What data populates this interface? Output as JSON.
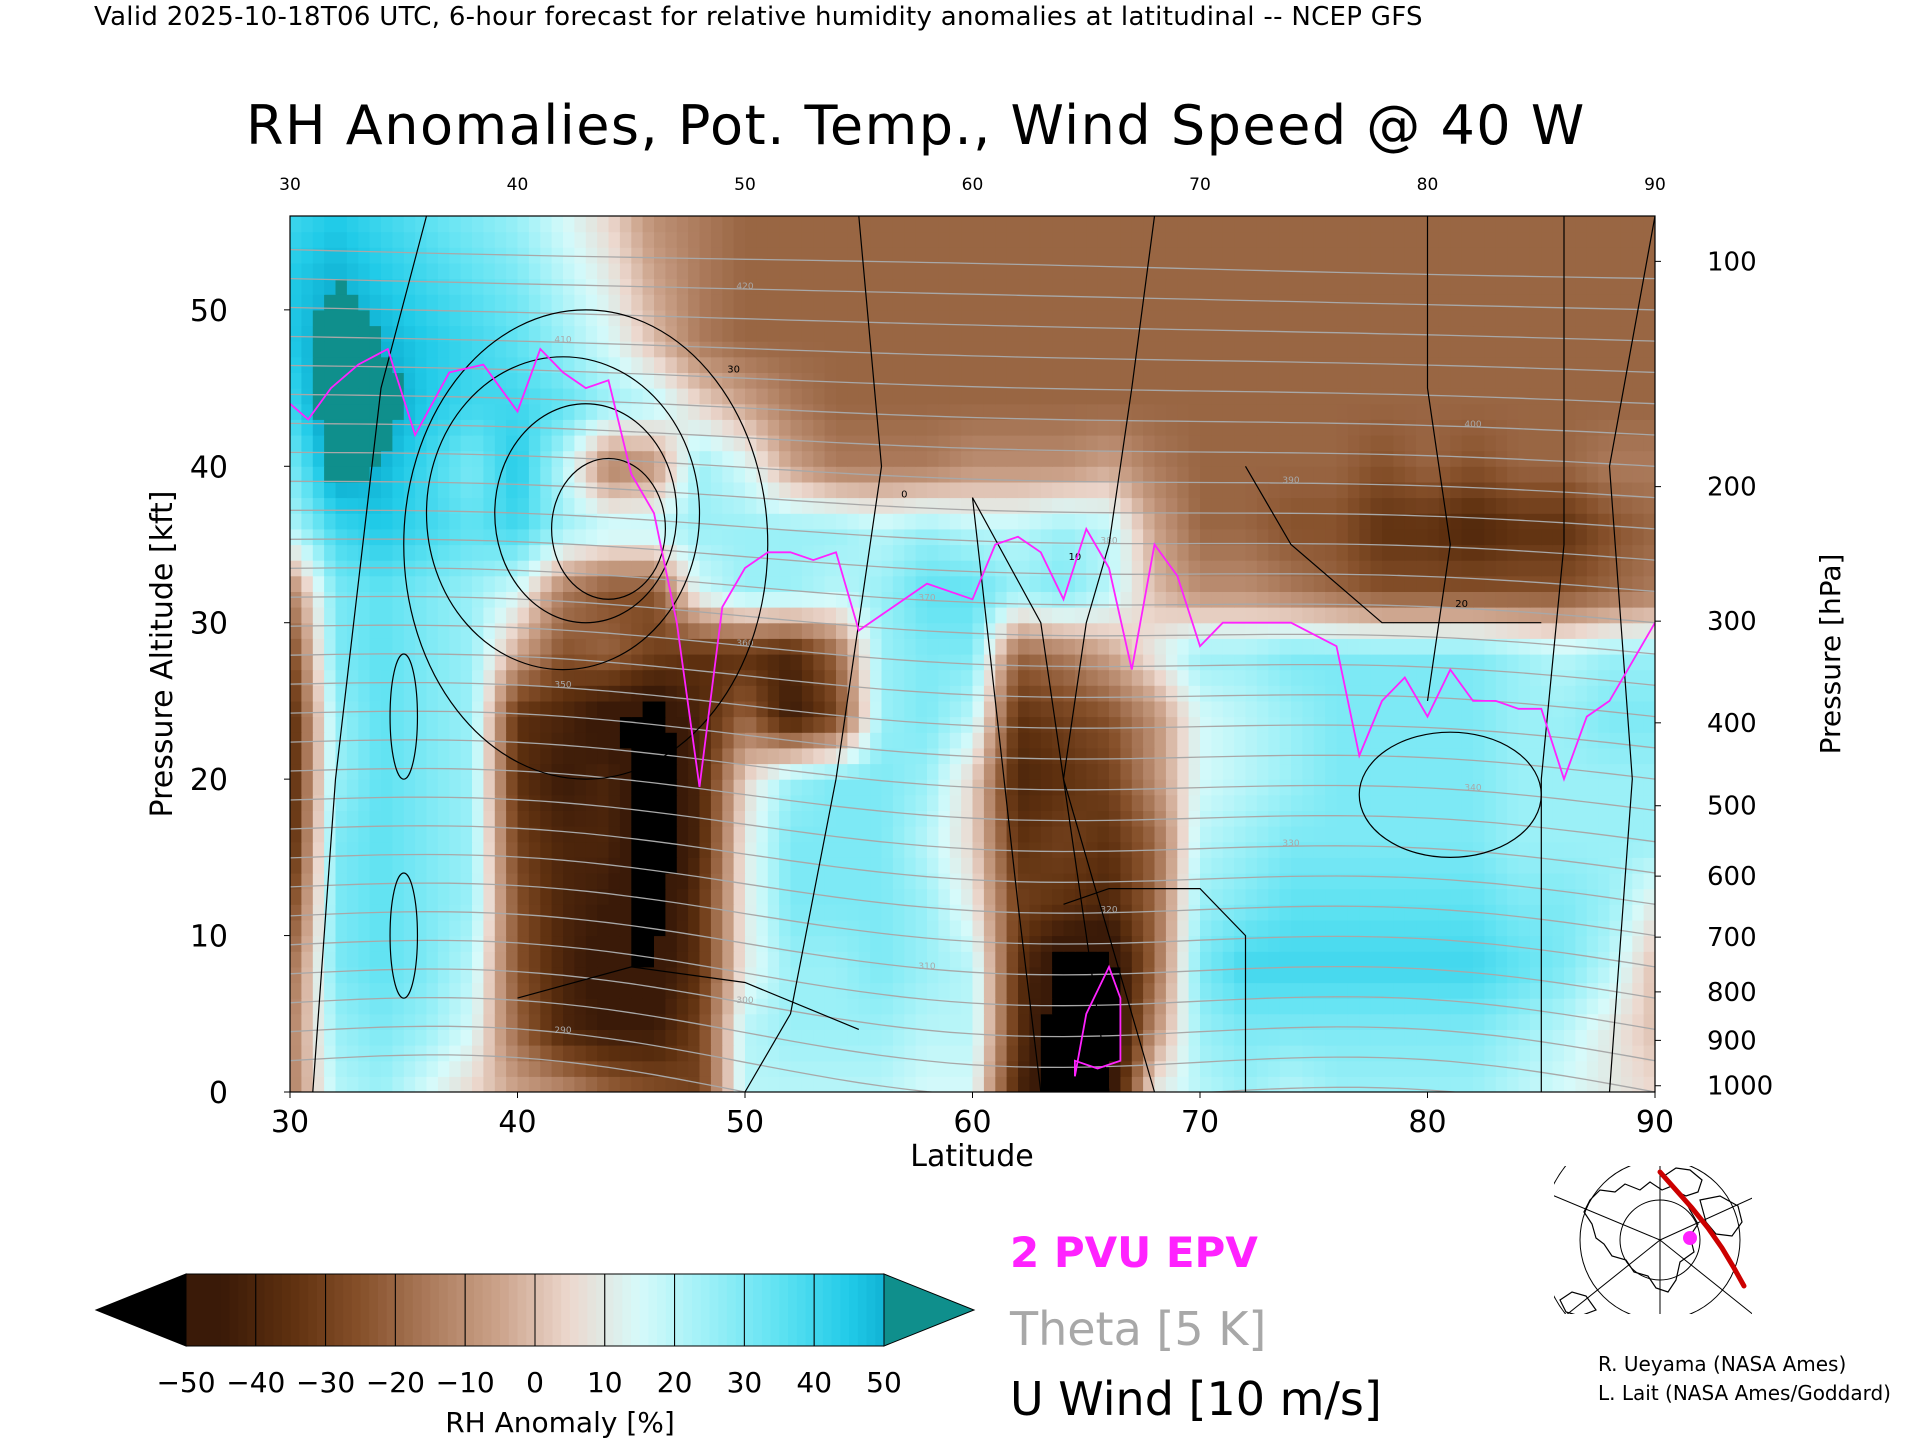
{
  "header": {
    "line": "Valid 2025-10-18T06 UTC, 6-hour forecast for relative humidity anomalies at latitudinal -- NCEP GFS",
    "title": "RH Anomalies, Pot. Temp., Wind Speed @ 40 W"
  },
  "credits": {
    "line1": "R. Ueyama (NASA Ames)",
    "line2": "L. Lait (NASA Ames/Goddard)"
  },
  "legend": {
    "epv_label": "2 PVU EPV",
    "theta_label": "Theta [5 K]",
    "u_label": "U Wind [10 m/s]"
  },
  "colors": {
    "epv": "#ff22ff",
    "theta": "#a8a8a8",
    "u_wind": "#000000",
    "map_track": "#cc0000",
    "map_point": "#ff22ff"
  },
  "chart_data": {
    "type": "heatmap",
    "title": "RH Anomalies, Pot. Temp., Wind Speed @ 40 W",
    "xlabel": "Latitude",
    "ylabel": "Pressure Altitude [kft]",
    "y2label": "Pressure [hPa]",
    "xlim": [
      30,
      90
    ],
    "ylim": [
      0,
      56
    ],
    "x_ticks": [
      30,
      40,
      50,
      60,
      70,
      80,
      90
    ],
    "y_ticks": [
      0,
      10,
      20,
      30,
      40,
      50
    ],
    "pressure_ticks": [
      {
        "hpa": 100,
        "kft": 53.1
      },
      {
        "hpa": 200,
        "kft": 38.7
      },
      {
        "hpa": 300,
        "kft": 30.1
      },
      {
        "hpa": 400,
        "kft": 23.6
      },
      {
        "hpa": 500,
        "kft": 18.3
      },
      {
        "hpa": 600,
        "kft": 13.8
      },
      {
        "hpa": 700,
        "kft": 9.9
      },
      {
        "hpa": 800,
        "kft": 6.4
      },
      {
        "hpa": 900,
        "kft": 3.3
      },
      {
        "hpa": 1000,
        "kft": 0.4
      }
    ],
    "colorbar": {
      "label": "RH Anomaly [%]",
      "ticks": [
        -50,
        -40,
        -30,
        -20,
        -10,
        0,
        10,
        20,
        30,
        40,
        50
      ],
      "tick_labels": [
        "−50",
        "−40",
        "−30",
        "−20",
        "−10",
        "0",
        "10",
        "20",
        "30",
        "40",
        "50"
      ],
      "colors": [
        "#3a1a08",
        "#5e300f",
        "#86502a",
        "#ac7b5c",
        "#cca38b",
        "#ecd8ce",
        "#d6fafa",
        "#9bf0f7",
        "#5fe2f2",
        "#21cbe8",
        "#009bc0"
      ],
      "under_color": "#000000",
      "over_color": "#0f8f8c"
    },
    "rh_field": {
      "x": [
        30,
        32,
        34,
        36,
        38,
        40,
        42,
        44,
        46,
        48,
        50,
        52,
        54,
        56,
        58,
        60,
        62,
        64,
        66,
        68,
        70,
        72,
        74,
        76,
        78,
        80,
        82,
        84,
        86,
        88,
        90
      ],
      "y": [
        0,
        4,
        8,
        12,
        16,
        20,
        24,
        28,
        32,
        36,
        40,
        44,
        48,
        52,
        56
      ],
      "z": [
        [
          -15,
          20,
          25,
          15,
          5,
          -5,
          -10,
          -20,
          -25,
          -30,
          20,
          20,
          20,
          20,
          15,
          15,
          -40,
          -60,
          -55,
          10,
          20,
          25,
          20,
          25,
          25,
          25,
          25,
          20,
          15,
          10,
          5
        ],
        [
          -15,
          25,
          30,
          25,
          15,
          -20,
          -40,
          -45,
          -45,
          -30,
          20,
          25,
          25,
          25,
          20,
          20,
          -35,
          -60,
          -60,
          -10,
          25,
          30,
          30,
          30,
          30,
          30,
          30,
          25,
          20,
          10,
          0
        ],
        [
          -20,
          30,
          35,
          30,
          20,
          -25,
          -40,
          -50,
          -50,
          -35,
          10,
          25,
          25,
          30,
          25,
          20,
          -35,
          -55,
          -55,
          -20,
          30,
          40,
          40,
          40,
          40,
          40,
          40,
          35,
          30,
          20,
          0
        ],
        [
          -30,
          30,
          35,
          30,
          25,
          -25,
          -40,
          -45,
          -55,
          -35,
          10,
          30,
          30,
          30,
          25,
          10,
          -30,
          -35,
          -40,
          -20,
          25,
          30,
          35,
          35,
          35,
          35,
          35,
          30,
          30,
          25,
          10
        ],
        [
          -40,
          30,
          35,
          30,
          25,
          -30,
          -40,
          -40,
          -60,
          -40,
          10,
          30,
          30,
          30,
          20,
          5,
          -35,
          -30,
          -35,
          -20,
          20,
          25,
          30,
          30,
          30,
          30,
          30,
          25,
          25,
          25,
          25
        ],
        [
          -40,
          25,
          35,
          30,
          25,
          -35,
          -45,
          -40,
          -60,
          -40,
          5,
          25,
          30,
          30,
          25,
          5,
          -40,
          -35,
          -30,
          -10,
          15,
          20,
          25,
          30,
          30,
          30,
          30,
          25,
          25,
          25,
          25
        ],
        [
          -40,
          25,
          35,
          30,
          25,
          -35,
          -40,
          -50,
          -55,
          -40,
          -20,
          -45,
          -30,
          25,
          30,
          20,
          -35,
          -30,
          -25,
          -10,
          15,
          20,
          25,
          30,
          30,
          30,
          30,
          25,
          25,
          30,
          30
        ],
        [
          -30,
          30,
          35,
          30,
          25,
          -5,
          -25,
          -20,
          -30,
          -35,
          -35,
          -40,
          -20,
          25,
          30,
          30,
          -20,
          -15,
          -5,
          10,
          25,
          25,
          30,
          30,
          30,
          30,
          30,
          25,
          20,
          25,
          25
        ],
        [
          -15,
          30,
          35,
          30,
          25,
          15,
          -15,
          -25,
          -25,
          15,
          25,
          25,
          20,
          25,
          35,
          35,
          25,
          30,
          20,
          0,
          -10,
          -10,
          -15,
          -20,
          -25,
          -25,
          -25,
          -25,
          -25,
          -20,
          -15
        ],
        [
          20,
          40,
          45,
          40,
          35,
          40,
          25,
          20,
          20,
          25,
          25,
          25,
          25,
          20,
          25,
          20,
          20,
          25,
          20,
          -5,
          -20,
          -20,
          -25,
          -25,
          -35,
          -35,
          -40,
          -35,
          -35,
          -25,
          -20
        ],
        [
          30,
          55,
          50,
          40,
          30,
          45,
          20,
          -15,
          -10,
          25,
          15,
          -5,
          -15,
          -15,
          -15,
          -10,
          -10,
          -10,
          -5,
          -15,
          -20,
          -20,
          -20,
          -20,
          -25,
          -20,
          -25,
          -20,
          -20,
          -15,
          -15
        ],
        [
          40,
          60,
          55,
          45,
          40,
          40,
          35,
          25,
          20,
          5,
          -5,
          -15,
          -20,
          -20,
          -20,
          -20,
          -20,
          -20,
          -20,
          -20,
          -20,
          -20,
          -20,
          -20,
          -20,
          -20,
          -20,
          -20,
          -20,
          -20,
          -20
        ],
        [
          45,
          55,
          50,
          45,
          40,
          35,
          25,
          15,
          0,
          -15,
          -20,
          -20,
          -20,
          -20,
          -20,
          -20,
          -20,
          -20,
          -20,
          -20,
          -20,
          -20,
          -20,
          -20,
          -20,
          -20,
          -20,
          -20,
          -20,
          -20,
          -20
        ],
        [
          45,
          50,
          45,
          40,
          35,
          30,
          20,
          10,
          -5,
          -15,
          -20,
          -20,
          -20,
          -20,
          -20,
          -20,
          -20,
          -20,
          -20,
          -20,
          -20,
          -20,
          -20,
          -20,
          -20,
          -20,
          -20,
          -20,
          -20,
          -20,
          -20
        ],
        [
          40,
          45,
          40,
          35,
          30,
          25,
          15,
          5,
          -10,
          -15,
          -20,
          -20,
          -20,
          -20,
          -20,
          -20,
          -20,
          -20,
          -20,
          -20,
          -20,
          -20,
          -20,
          -20,
          -20,
          -20,
          -20,
          -20,
          -20,
          -20,
          -20
        ]
      ]
    },
    "epv_2pvu": {
      "name": "2 PVU EPV",
      "x": [
        30,
        30.8,
        31.8,
        33,
        34.3,
        35.5,
        37,
        38.5,
        40,
        41,
        42,
        43,
        44,
        45,
        46,
        47,
        48,
        49,
        50,
        51,
        52,
        53,
        54,
        55,
        56,
        58,
        60,
        61,
        62,
        63,
        64,
        65,
        66,
        67,
        68,
        69,
        70,
        71,
        72,
        74,
        76,
        77,
        78,
        79,
        80,
        81,
        82,
        83,
        84,
        85,
        86,
        87,
        88,
        89,
        90
      ],
      "y": [
        44,
        43,
        45,
        46.5,
        47.5,
        42,
        46,
        46.5,
        43.5,
        47.5,
        46,
        45,
        45.5,
        39.5,
        37,
        30,
        19.5,
        31,
        33.5,
        34.5,
        34.5,
        34,
        34.5,
        29.5,
        30.5,
        32.5,
        31.5,
        35,
        35.5,
        34.5,
        31.5,
        36,
        33.5,
        27,
        35,
        33,
        28.5,
        30,
        30,
        30,
        28.5,
        21.5,
        25,
        26.5,
        24,
        27,
        25,
        25,
        24.5,
        24.5,
        20,
        24,
        25,
        27.5,
        30
      ],
      "fold": {
        "x": [
          64.5,
          65,
          66,
          66.5,
          66.5,
          65.5,
          64.5,
          64.5
        ],
        "y": [
          1,
          5,
          8,
          6,
          2,
          1.5,
          2,
          1
        ]
      }
    },
    "theta_contours": {
      "name": "Theta",
      "interval_k": 5,
      "labeled_levels": [
        290,
        300,
        310,
        320,
        330,
        340,
        350,
        360,
        370,
        380,
        390,
        400,
        410,
        420
      ]
    },
    "u_wind_contours": {
      "name": "U Wind",
      "interval_ms": 10,
      "labeled_levels": [
        0,
        10,
        20,
        30
      ]
    },
    "locator_map": {
      "description_visible": false
    }
  }
}
